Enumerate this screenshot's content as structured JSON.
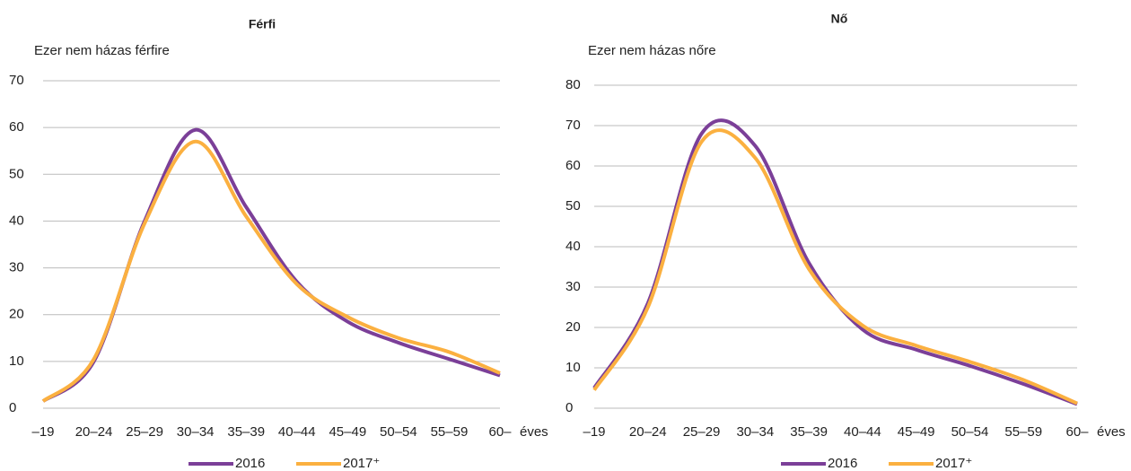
{
  "chart_data": [
    {
      "type": "line",
      "title": "Férfi",
      "y_label": "Ezer nem házas férfire",
      "x_label": "éves",
      "categories": [
        "–19",
        "20–24",
        "25–29",
        "30–34",
        "35–39",
        "40–44",
        "45–49",
        "50–54",
        "55–59",
        "60–"
      ],
      "series": [
        {
          "name": "2016",
          "color": "#7b3f98",
          "values": [
            1.5,
            10,
            40,
            59.5,
            43,
            27,
            18.5,
            14,
            10.5,
            7
          ]
        },
        {
          "name": "2017⁺",
          "color": "#fbb040",
          "values": [
            1.5,
            10.5,
            39.5,
            57,
            41,
            26.5,
            19.5,
            15,
            12,
            7.5
          ]
        }
      ],
      "ylim": [
        0,
        70
      ],
      "yticks": [
        0,
        10,
        20,
        30,
        40,
        50,
        60,
        70
      ],
      "grid": true,
      "legend": "bottom"
    },
    {
      "type": "line",
      "title": "Nő",
      "y_label": "Ezer nem házas nőre",
      "x_label": "éves",
      "categories": [
        "–19",
        "20–24",
        "25–29",
        "30–34",
        "35–39",
        "40–44",
        "45–49",
        "50–54",
        "55–59",
        "60–"
      ],
      "series": [
        {
          "name": "2016",
          "color": "#7b3f98",
          "values": [
            5,
            26,
            68,
            65,
            36,
            19.5,
            14.5,
            10.5,
            6,
            1
          ]
        },
        {
          "name": "2017⁺",
          "color": "#fbb040",
          "values": [
            4.5,
            25,
            66,
            62,
            34.5,
            20.5,
            15.5,
            11.5,
            7,
            1.2
          ]
        }
      ],
      "ylim": [
        0,
        80
      ],
      "yticks": [
        0,
        10,
        20,
        30,
        40,
        50,
        60,
        70,
        80
      ],
      "grid": true,
      "legend": "bottom"
    }
  ]
}
